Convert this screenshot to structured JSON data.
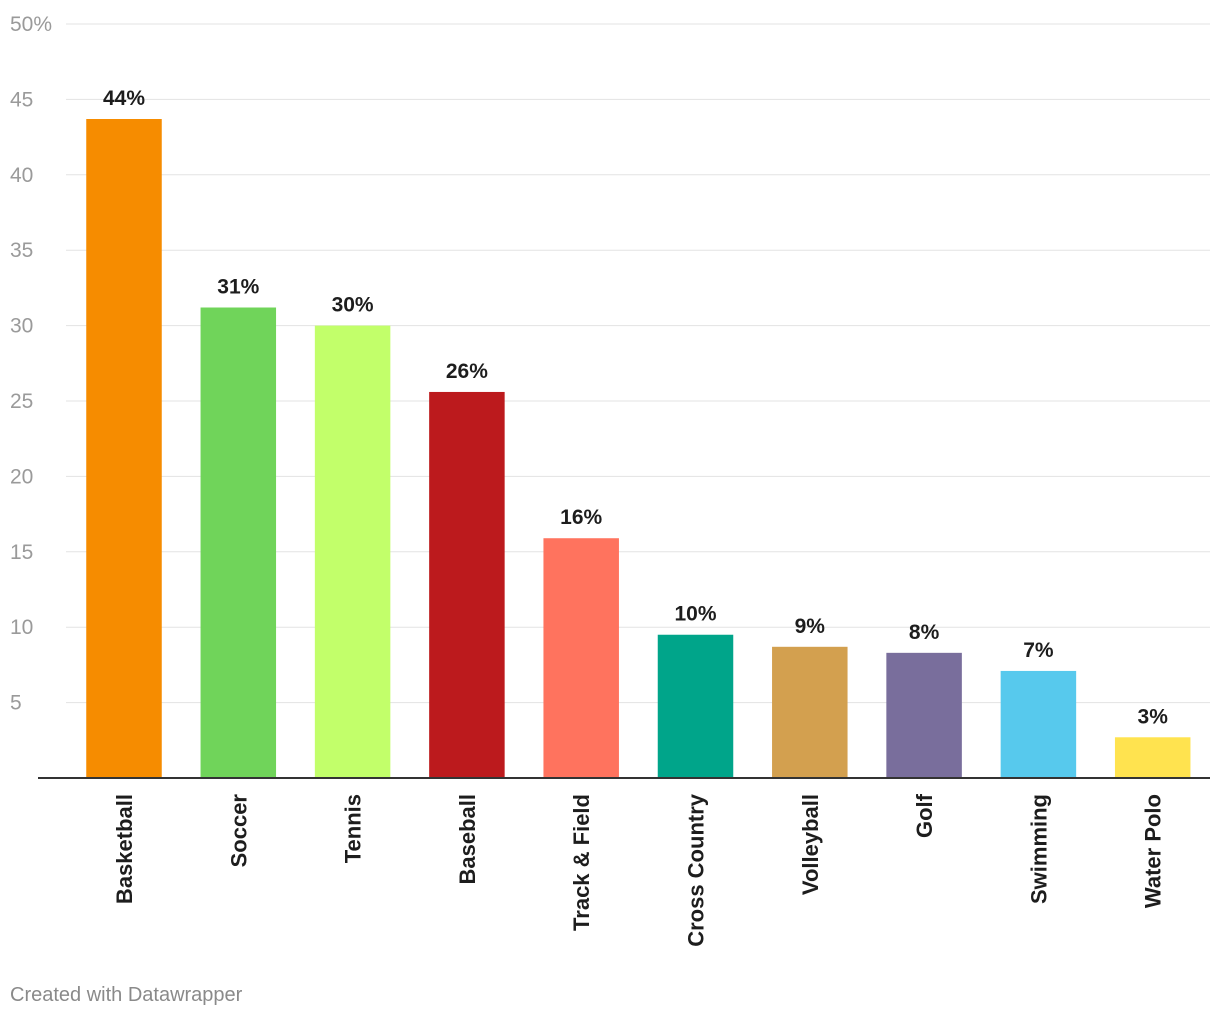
{
  "chart_data": {
    "type": "bar",
    "categories": [
      "Basketball",
      "Soccer",
      "Tennis",
      "Baseball",
      "Track & Field",
      "Cross Country",
      "Volleyball",
      "Golf",
      "Swimming",
      "Water Polo"
    ],
    "values": [
      43.7,
      31.2,
      30.0,
      25.6,
      15.9,
      9.5,
      8.7,
      8.3,
      7.1,
      2.7
    ],
    "value_labels": [
      "44%",
      "31%",
      "30%",
      "26%",
      "16%",
      "10%",
      "9%",
      "8%",
      "7%",
      "3%"
    ],
    "colors": [
      "#f68c00",
      "#70d45a",
      "#c2ff6a",
      "#bc1a1d",
      "#ff735e",
      "#00a58a",
      "#d3a04f",
      "#796e9c",
      "#57c9ed",
      "#ffe34f"
    ],
    "y_ticks": [
      5,
      10,
      15,
      20,
      25,
      30,
      35,
      40,
      45,
      50
    ],
    "y_tick_labels": [
      "5",
      "10",
      "15",
      "20",
      "25",
      "30",
      "35",
      "40",
      "45",
      "50%"
    ],
    "ylim": [
      0,
      50
    ],
    "grid": true,
    "title": "",
    "xlabel": "",
    "ylabel": ""
  },
  "credit": "Created with Datawrapper"
}
